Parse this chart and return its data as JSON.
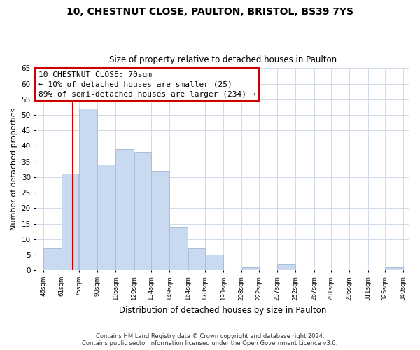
{
  "title": "10, CHESTNUT CLOSE, PAULTON, BRISTOL, BS39 7YS",
  "subtitle": "Size of property relative to detached houses in Paulton",
  "xlabel": "Distribution of detached houses by size in Paulton",
  "ylabel": "Number of detached properties",
  "bar_left_edges": [
    46,
    61,
    75,
    90,
    105,
    120,
    134,
    149,
    164,
    178,
    193,
    208,
    222,
    237,
    252,
    267,
    281,
    296,
    311,
    325
  ],
  "bar_heights": [
    7,
    31,
    52,
    34,
    39,
    38,
    32,
    14,
    7,
    5,
    0,
    1,
    0,
    2,
    0,
    0,
    0,
    0,
    0,
    1
  ],
  "bar_widths": [
    15,
    14,
    15,
    15,
    15,
    14,
    15,
    15,
    14,
    15,
    15,
    14,
    15,
    15,
    15,
    14,
    15,
    15,
    14,
    15
  ],
  "tick_labels": [
    "46sqm",
    "61sqm",
    "75sqm",
    "90sqm",
    "105sqm",
    "120sqm",
    "134sqm",
    "149sqm",
    "164sqm",
    "178sqm",
    "193sqm",
    "208sqm",
    "222sqm",
    "237sqm",
    "252sqm",
    "267sqm",
    "281sqm",
    "296sqm",
    "311sqm",
    "325sqm",
    "340sqm"
  ],
  "tick_positions": [
    46,
    61,
    75,
    90,
    105,
    120,
    134,
    149,
    164,
    178,
    193,
    208,
    222,
    237,
    252,
    267,
    281,
    296,
    311,
    325,
    340
  ],
  "bar_color": "#c9d9f0",
  "bar_edge_color": "#aabfd8",
  "vline_x": 70,
  "vline_color": "#cc0000",
  "ylim": [
    0,
    65
  ],
  "xlim": [
    40,
    345
  ],
  "annotation_line1": "10 CHESTNUT CLOSE: 70sqm",
  "annotation_line2": "← 10% of detached houses are smaller (25)",
  "annotation_line3": "89% of semi-detached houses are larger (234) →",
  "footer_line1": "Contains HM Land Registry data © Crown copyright and database right 2024.",
  "footer_line2": "Contains public sector information licensed under the Open Government Licence v3.0.",
  "background_color": "#ffffff",
  "grid_color": "#d0dcea",
  "yticks": [
    0,
    5,
    10,
    15,
    20,
    25,
    30,
    35,
    40,
    45,
    50,
    55,
    60,
    65
  ]
}
